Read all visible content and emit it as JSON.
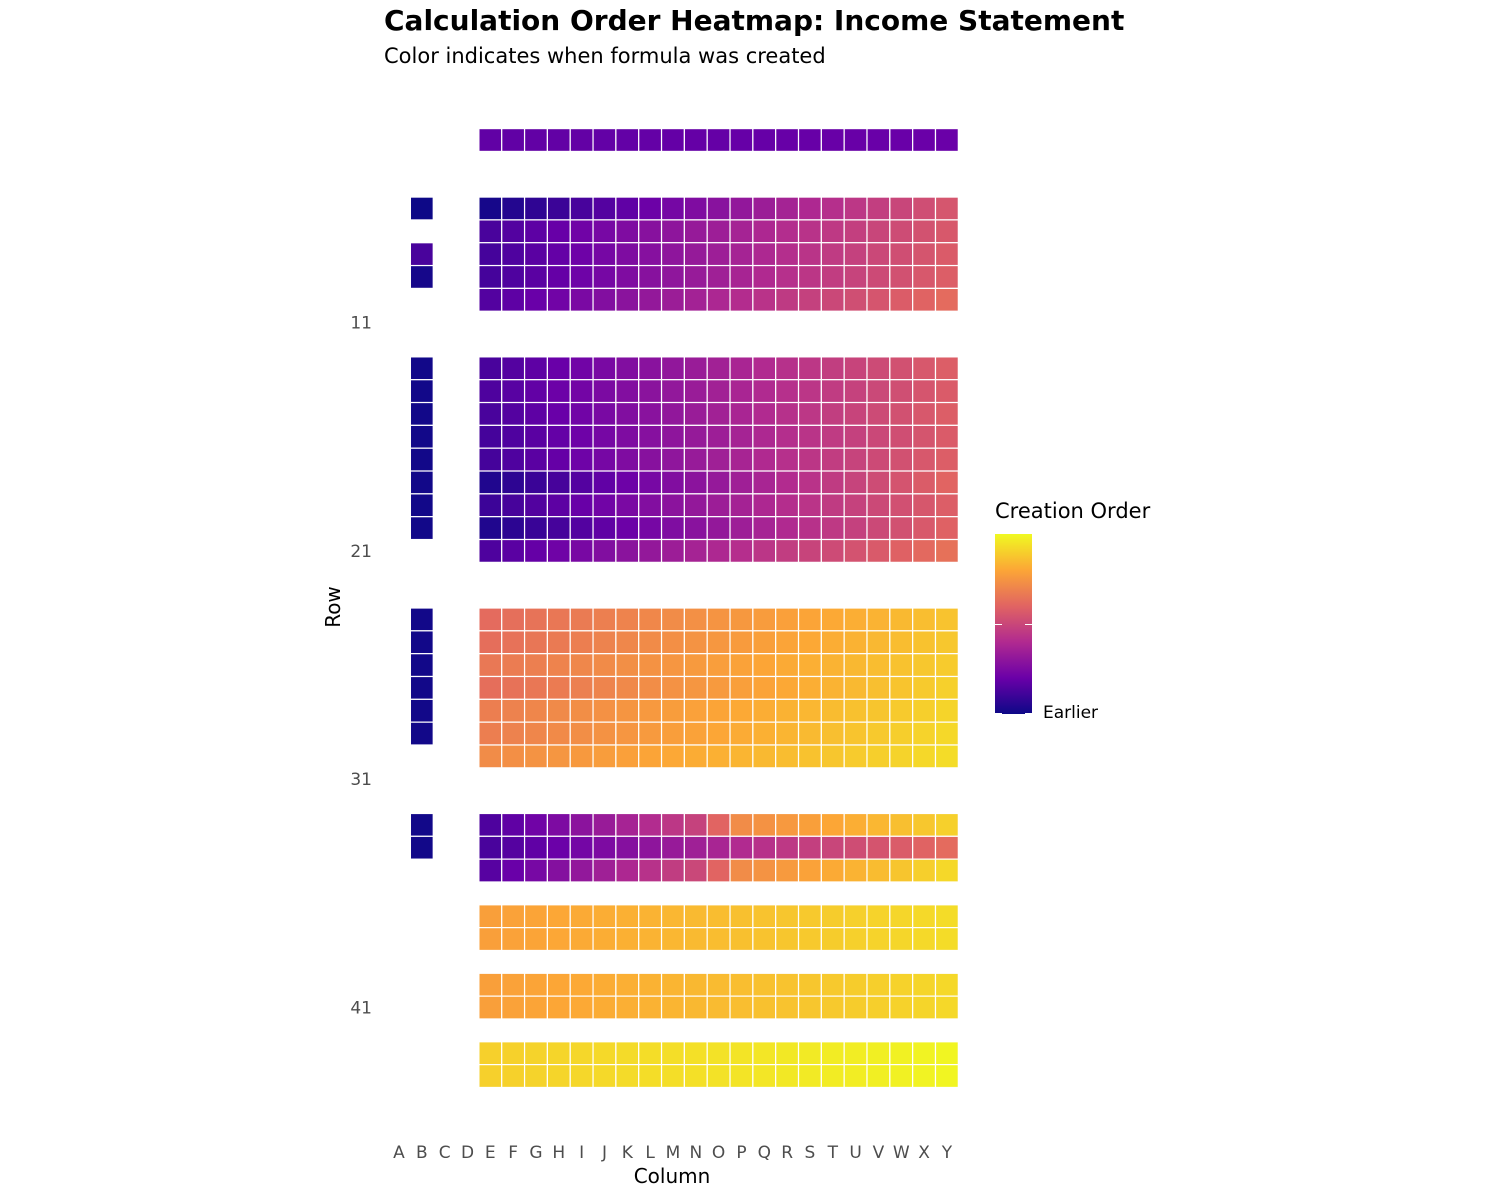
{
  "title": "Calculation Order Heatmap: Income Statement",
  "subtitle": "Color indicates when formula was created",
  "chart_data": {
    "type": "heatmap",
    "xlabel": "Column",
    "ylabel": "Row",
    "x_categories": [
      "A",
      "B",
      "C",
      "D",
      "E",
      "F",
      "G",
      "H",
      "I",
      "J",
      "K",
      "L",
      "M",
      "N",
      "O",
      "P",
      "Q",
      "R",
      "S",
      "T",
      "U",
      "V",
      "W",
      "X",
      "Y"
    ],
    "y_tick_labels": [
      "11",
      "21",
      "31",
      "41"
    ],
    "y_tick_rows": [
      11,
      21,
      31,
      41
    ],
    "row_range": [
      3,
      47
    ],
    "value_range": [
      0,
      1
    ],
    "palette": [
      "#0d0887",
      "#6a00a8",
      "#b12a90",
      "#e16462",
      "#fca636",
      "#f0f921"
    ],
    "legend": {
      "title": "Creation Order",
      "label_low": "Earlier",
      "position": "right"
    },
    "value_note": "cell values are normalized creation order (0 = earliest, 1 = latest), estimated from color",
    "cells": [
      {
        "rows": [
          3
        ],
        "column_B": null,
        "E_to_Y": [
          0.18,
          0.2
        ]
      },
      {
        "rows": [
          6
        ],
        "column_B": 0.0,
        "E_to_Y": [
          0.02,
          0.55
        ]
      },
      {
        "rows": [
          7
        ],
        "column_B": null,
        "E_to_Y": [
          0.13,
          0.56
        ]
      },
      {
        "rows": [
          8
        ],
        "column_B": 0.13,
        "E_to_Y": [
          0.12,
          0.57
        ]
      },
      {
        "rows": [
          9
        ],
        "column_B": 0.02,
        "E_to_Y": [
          0.12,
          0.58
        ]
      },
      {
        "rows": [
          10
        ],
        "column_B": null,
        "E_to_Y": [
          0.15,
          0.62
        ]
      },
      {
        "rows": [
          13
        ],
        "column_B": 0.01,
        "E_to_Y": [
          0.13,
          0.58
        ]
      },
      {
        "rows": [
          14
        ],
        "column_B": 0.01,
        "E_to_Y": [
          0.14,
          0.57
        ]
      },
      {
        "rows": [
          15
        ],
        "column_B": 0.01,
        "E_to_Y": [
          0.13,
          0.58
        ]
      },
      {
        "rows": [
          16
        ],
        "column_B": 0.01,
        "E_to_Y": [
          0.12,
          0.57
        ]
      },
      {
        "rows": [
          17
        ],
        "column_B": 0.01,
        "E_to_Y": [
          0.12,
          0.58
        ]
      },
      {
        "rows": [
          18
        ],
        "column_B": 0.01,
        "E_to_Y": [
          0.04,
          0.6
        ]
      },
      {
        "rows": [
          19
        ],
        "column_B": 0.01,
        "E_to_Y": [
          0.1,
          0.58
        ]
      },
      {
        "rows": [
          20
        ],
        "column_B": 0.01,
        "E_to_Y": [
          0.04,
          0.59
        ]
      },
      {
        "rows": [
          21
        ],
        "column_B": null,
        "E_to_Y": [
          0.14,
          0.64
        ]
      },
      {
        "rows": [
          24
        ],
        "column_B": 0.01,
        "E_to_Y": [
          0.62,
          0.87
        ]
      },
      {
        "rows": [
          25
        ],
        "column_B": 0.01,
        "E_to_Y": [
          0.63,
          0.88
        ]
      },
      {
        "rows": [
          26
        ],
        "column_B": 0.01,
        "E_to_Y": [
          0.66,
          0.89
        ]
      },
      {
        "rows": [
          27
        ],
        "column_B": 0.01,
        "E_to_Y": [
          0.63,
          0.9
        ]
      },
      {
        "rows": [
          28
        ],
        "column_B": 0.01,
        "E_to_Y": [
          0.68,
          0.91
        ]
      },
      {
        "rows": [
          29
        ],
        "column_B": 0.01,
        "E_to_Y": [
          0.68,
          0.92
        ]
      },
      {
        "rows": [
          30
        ],
        "column_B": null,
        "E_to_Y": [
          0.72,
          0.93
        ]
      },
      {
        "rows": [
          33
        ],
        "column_B": 0.01,
        "E_to_Y": [
          0.14,
          0.9
        ],
        "note": "shifts to orange from column P"
      },
      {
        "rows": [
          34
        ],
        "column_B": 0.01,
        "E_to_Y": [
          0.13,
          0.62
        ]
      },
      {
        "rows": [
          35
        ],
        "column_B": null,
        "E_to_Y": [
          0.16,
          0.92
        ],
        "note": "shifts to orange from column P"
      },
      {
        "rows": [
          37,
          38
        ],
        "column_B": null,
        "E_to_Y": [
          0.78,
          0.93
        ]
      },
      {
        "rows": [
          40,
          41
        ],
        "column_B": null,
        "E_to_Y": [
          0.78,
          0.92
        ]
      },
      {
        "rows": [
          43,
          44
        ],
        "column_B": null,
        "E_to_Y": [
          0.9,
          0.99
        ]
      }
    ]
  }
}
